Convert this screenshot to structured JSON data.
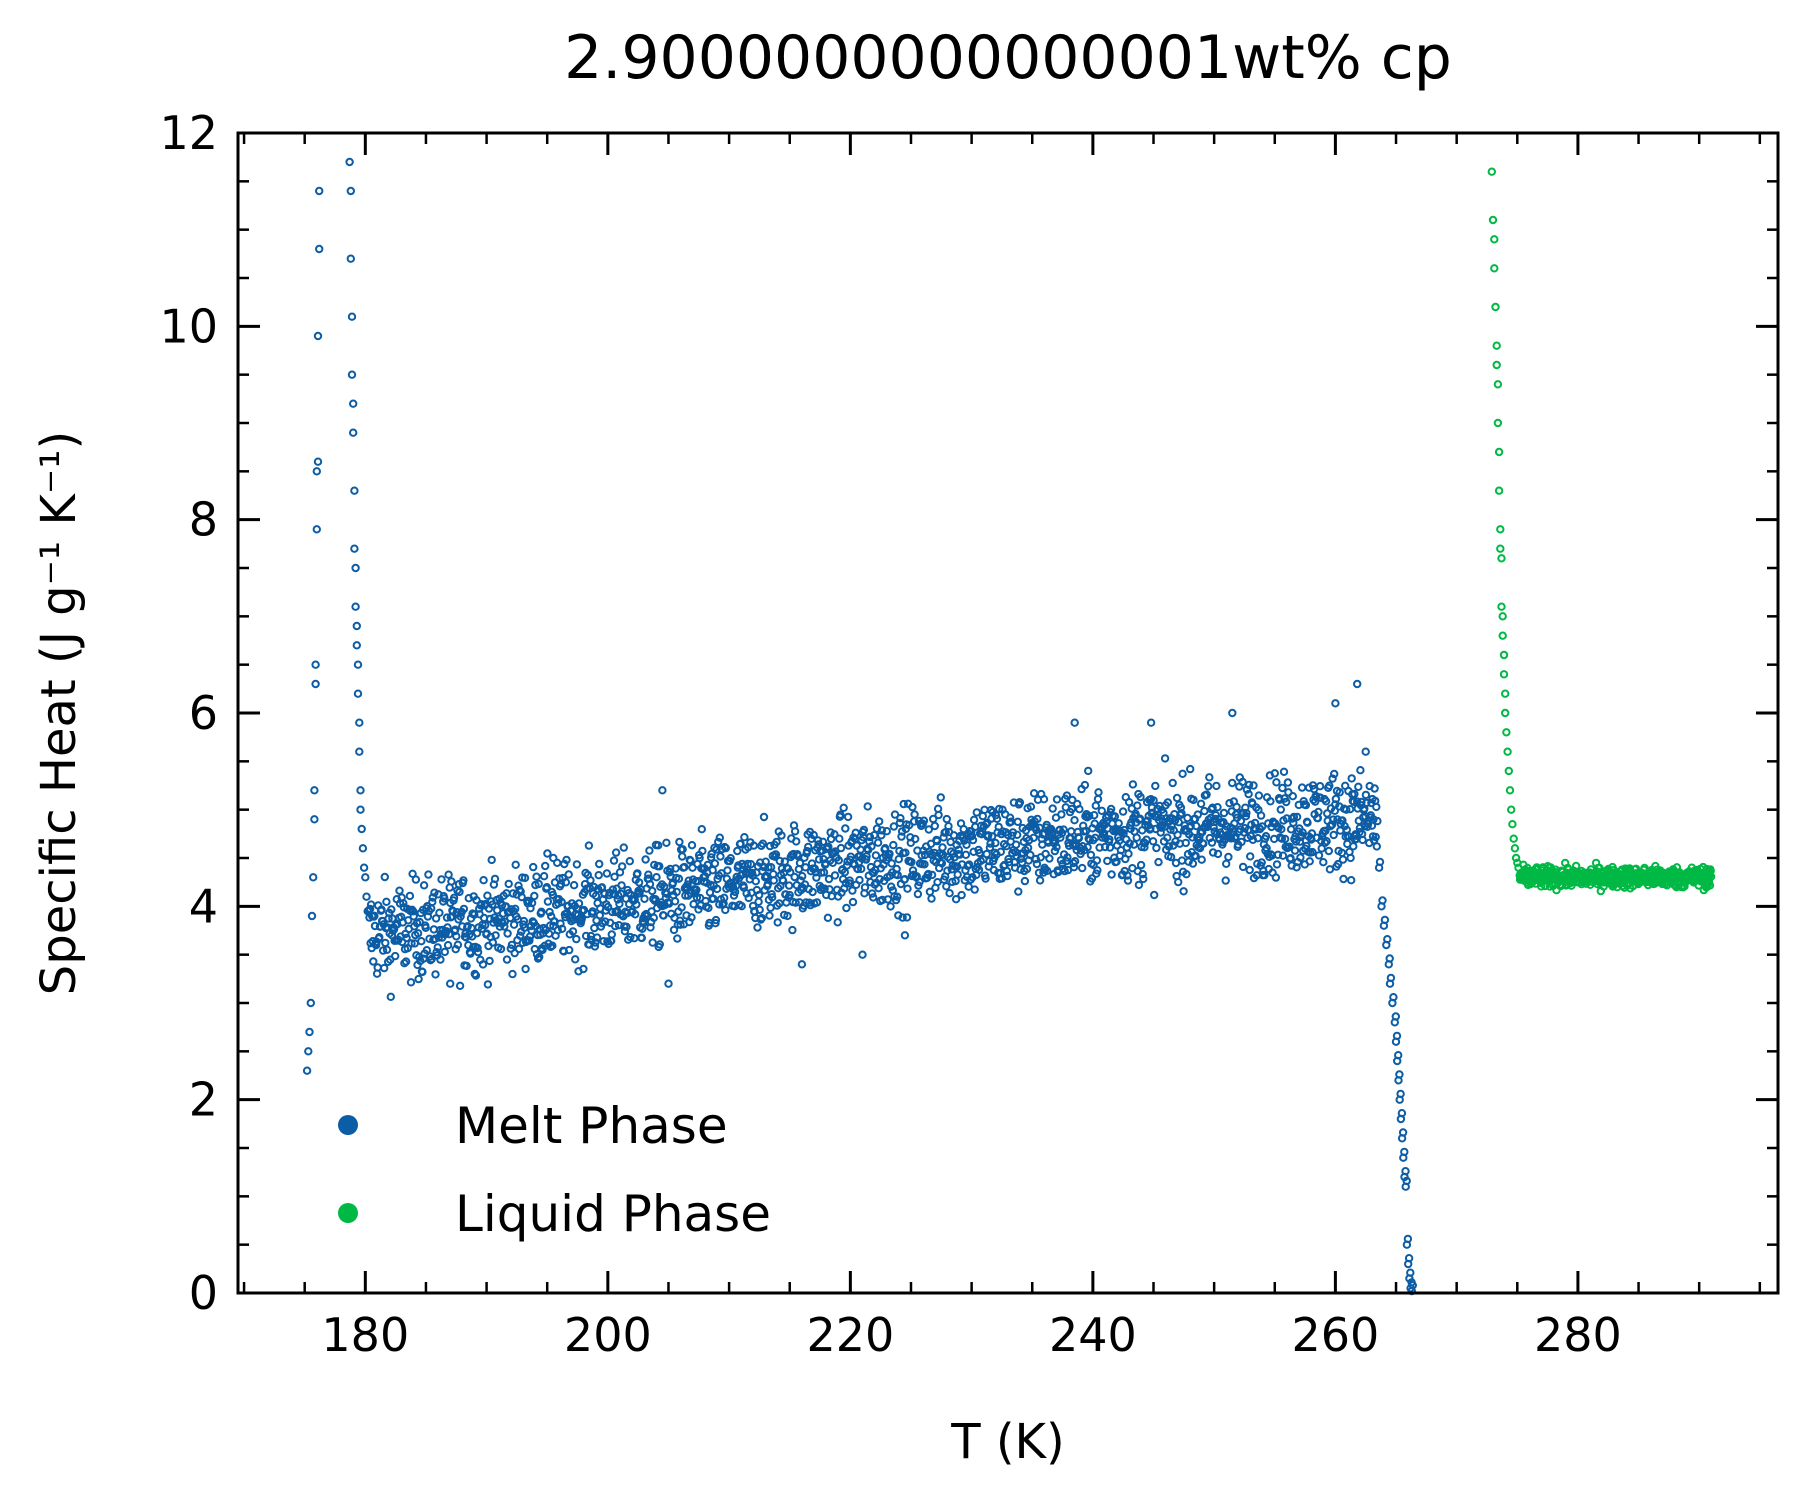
{
  "chart_data": {
    "type": "scatter",
    "title": "2.9000000000000001wt% cp",
    "xlabel": "T (K)",
    "ylabel": "Specific Heat (J g⁻¹ K⁻¹)",
    "xlim": [
      169.5,
      296.5
    ],
    "ylim": [
      0,
      12
    ],
    "x_ticks": [
      180,
      200,
      220,
      240,
      260,
      280
    ],
    "y_ticks": [
      0,
      2,
      4,
      6,
      8,
      10,
      12
    ],
    "grid": false,
    "legend_position": "lower-left",
    "series": [
      {
        "name": "Melt Phase",
        "color": "#0c5da5",
        "marker": "open-circle",
        "points": [
          [
            175.2,
            2.3
          ],
          [
            175.3,
            2.5
          ],
          [
            175.4,
            2.7
          ],
          [
            175.5,
            3.0
          ],
          [
            175.6,
            3.9
          ],
          [
            175.7,
            4.3
          ],
          [
            175.8,
            4.9
          ],
          [
            175.8,
            5.2
          ],
          [
            175.9,
            6.3
          ],
          [
            175.9,
            6.5
          ],
          [
            176.0,
            7.9
          ],
          [
            176.0,
            8.5
          ],
          [
            176.1,
            8.6
          ],
          [
            176.1,
            9.9
          ],
          [
            176.2,
            10.8
          ],
          [
            176.2,
            11.4
          ],
          [
            178.7,
            11.7
          ],
          [
            178.8,
            11.4
          ],
          [
            178.8,
            10.7
          ],
          [
            178.9,
            10.1
          ],
          [
            178.9,
            9.5
          ],
          [
            179.0,
            9.2
          ],
          [
            179.0,
            8.9
          ],
          [
            179.1,
            8.3
          ],
          [
            179.1,
            7.7
          ],
          [
            179.2,
            7.5
          ],
          [
            179.2,
            7.1
          ],
          [
            179.3,
            6.9
          ],
          [
            179.3,
            6.7
          ],
          [
            179.4,
            6.5
          ],
          [
            179.4,
            6.2
          ],
          [
            179.5,
            5.9
          ],
          [
            179.5,
            5.6
          ],
          [
            179.6,
            5.2
          ],
          [
            179.6,
            5.0
          ],
          [
            179.7,
            4.8
          ],
          [
            179.8,
            4.6
          ],
          [
            179.9,
            4.4
          ],
          [
            180.0,
            4.3
          ],
          [
            180.1,
            4.1
          ],
          [
            180.2,
            3.95
          ]
        ],
        "melt_band": {
          "x_range": [
            180.3,
            263.5
          ],
          "trend": [
            [
              180,
              3.7
            ],
            [
              200,
              4.0
            ],
            [
              220,
              4.45
            ],
            [
              240,
              4.75
            ],
            [
              262,
              4.9
            ]
          ],
          "spread": 0.9,
          "outliers": [
            [
              187.0,
              3.2
            ],
            [
              195.5,
              4.5
            ],
            [
              204.5,
              5.2
            ],
            [
              205.0,
              3.2
            ],
            [
              216.0,
              3.4
            ],
            [
              221.0,
              3.5
            ],
            [
              224.5,
              3.7
            ],
            [
              238.5,
              5.9
            ],
            [
              244.8,
              5.9
            ],
            [
              251.5,
              6.0
            ],
            [
              260.0,
              6.1
            ],
            [
              261.8,
              6.3
            ],
            [
              262.5,
              5.6
            ]
          ]
        },
        "tail": [
          [
            263.6,
            4.4
          ],
          [
            263.8,
            4.0
          ],
          [
            264.0,
            3.8
          ],
          [
            264.2,
            3.6
          ],
          [
            264.4,
            3.4
          ],
          [
            264.5,
            3.2
          ],
          [
            264.7,
            3.0
          ],
          [
            264.9,
            2.8
          ],
          [
            265.0,
            2.6
          ],
          [
            265.1,
            2.4
          ],
          [
            265.2,
            2.2
          ],
          [
            265.3,
            2.0
          ],
          [
            265.4,
            1.8
          ],
          [
            265.5,
            1.6
          ],
          [
            265.6,
            1.4
          ],
          [
            265.7,
            1.2
          ],
          [
            265.8,
            1.1
          ],
          [
            265.9,
            0.5
          ],
          [
            266.0,
            0.3
          ],
          [
            266.1,
            0.15
          ],
          [
            266.2,
            0.05
          ],
          [
            266.3,
            0.02
          ]
        ]
      },
      {
        "name": "Liquid Phase",
        "color": "#00b945",
        "marker": "open-circle",
        "points": [
          [
            272.9,
            11.6
          ],
          [
            273.0,
            11.1
          ],
          [
            273.1,
            10.9
          ],
          [
            273.1,
            10.6
          ],
          [
            273.2,
            10.2
          ],
          [
            273.3,
            9.8
          ],
          [
            273.3,
            9.6
          ],
          [
            273.4,
            9.4
          ],
          [
            273.4,
            9.0
          ],
          [
            273.5,
            8.7
          ],
          [
            273.5,
            8.3
          ],
          [
            273.6,
            7.9
          ],
          [
            273.6,
            7.7
          ],
          [
            273.7,
            7.6
          ],
          [
            273.7,
            7.1
          ],
          [
            273.8,
            7.0
          ],
          [
            273.8,
            6.8
          ],
          [
            273.9,
            6.6
          ],
          [
            273.9,
            6.4
          ],
          [
            274.0,
            6.2
          ],
          [
            274.0,
            6.0
          ],
          [
            274.1,
            5.8
          ],
          [
            274.2,
            5.6
          ],
          [
            274.3,
            5.4
          ],
          [
            274.4,
            5.2
          ],
          [
            274.5,
            5.0
          ],
          [
            274.6,
            4.85
          ],
          [
            274.7,
            4.7
          ],
          [
            274.8,
            4.6
          ],
          [
            274.9,
            4.5
          ],
          [
            275.0,
            4.45
          ],
          [
            275.1,
            4.4
          ]
        ],
        "flat_band": {
          "x_range": [
            275.2,
            291.0
          ],
          "y_center": 4.3,
          "spread": 0.15
        }
      }
    ]
  }
}
